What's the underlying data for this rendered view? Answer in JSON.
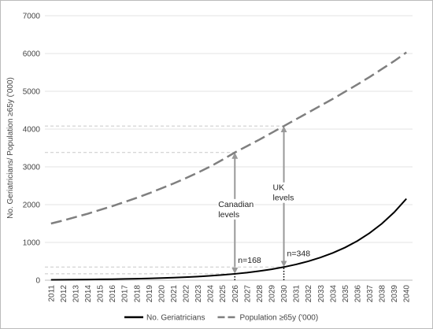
{
  "chart_data": {
    "type": "line",
    "ylabel": "No. Geriatricians/ Population ≥65y ('000)",
    "categories": [
      "2011",
      "2012",
      "2013",
      "2014",
      "2015",
      "2016",
      "2017",
      "2018",
      "2019",
      "2020",
      "2021",
      "2022",
      "2023",
      "2024",
      "2025",
      "2026",
      "2027",
      "2028",
      "2029",
      "2030",
      "2031",
      "2032",
      "2033",
      "2034",
      "2035",
      "2036",
      "2037",
      "2038",
      "2039",
      "2040"
    ],
    "series": [
      {
        "name": "No. Geriatricians",
        "color": "#000000",
        "dash": "solid",
        "values": [
          11,
          13,
          16,
          19,
          23,
          27,
          33,
          39,
          47,
          56,
          68,
          81,
          97,
          117,
          140,
          168,
          201,
          242,
          290,
          348,
          418,
          501,
          602,
          722,
          866,
          1040,
          1248,
          1497,
          1797,
          2156
        ]
      },
      {
        "name": "Population ≥65y ('000)",
        "color": "#7f7f7f",
        "dash": "dashed",
        "values": [
          1500,
          1580,
          1670,
          1760,
          1860,
          1960,
          2070,
          2180,
          2300,
          2430,
          2560,
          2700,
          2850,
          3010,
          3190,
          3380,
          3550,
          3720,
          3900,
          4080,
          4260,
          4440,
          4620,
          4800,
          4990,
          5180,
          5380,
          5590,
          5800,
          6030
        ]
      }
    ],
    "annotations": [
      {
        "category": "2026",
        "label": [
          "Canadian",
          "levels"
        ],
        "n_label": "n=168"
      },
      {
        "category": "2030",
        "label": [
          "UK",
          "levels"
        ],
        "n_label": "n=348"
      }
    ],
    "ylim": [
      0,
      7000
    ],
    "yticks": [
      0,
      1000,
      2000,
      3000,
      4000,
      5000,
      6000,
      7000
    ],
    "grid": true,
    "legend": "bottom"
  }
}
